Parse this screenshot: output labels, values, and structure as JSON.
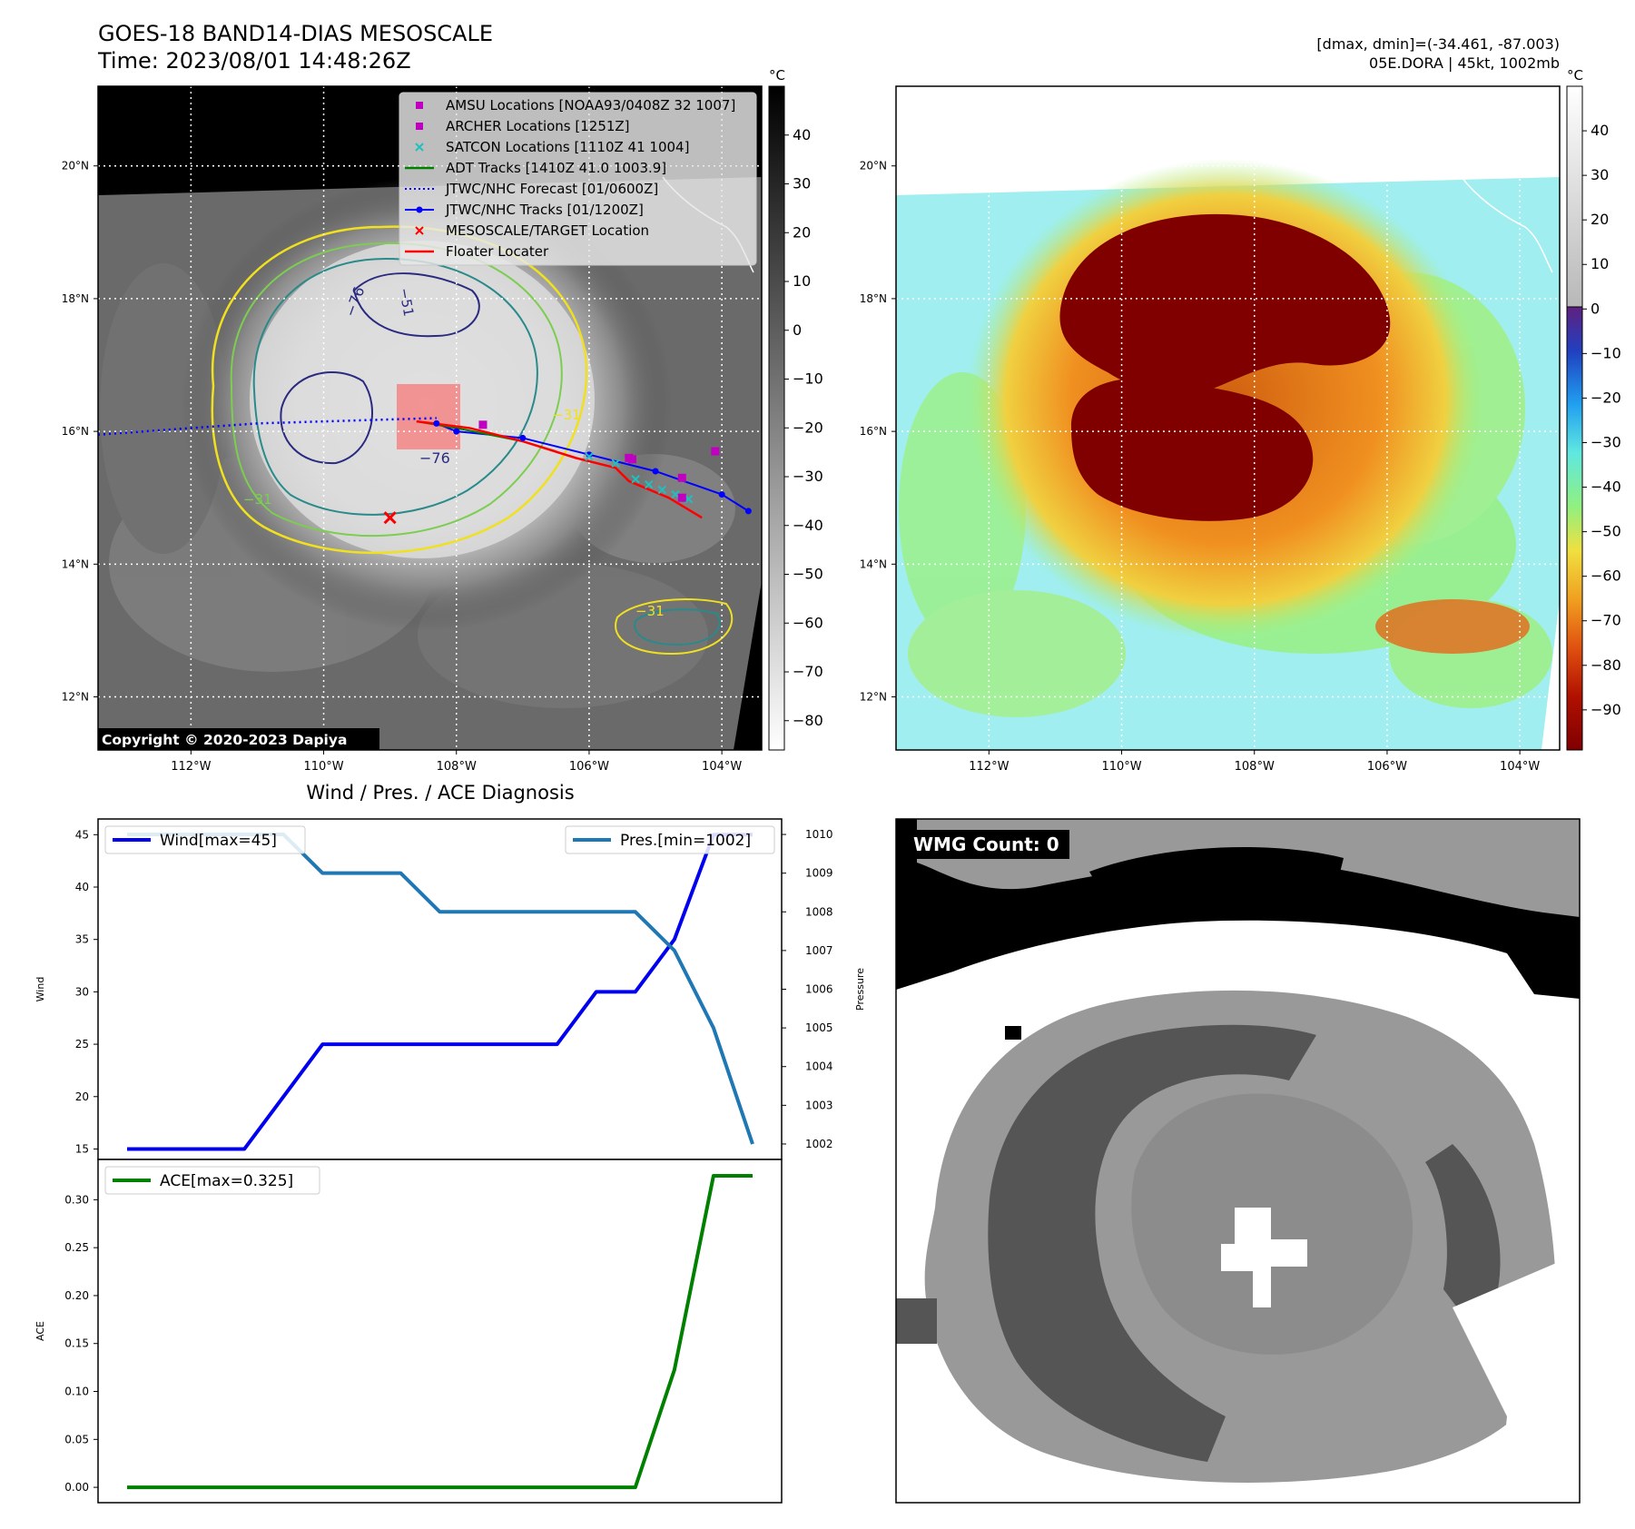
{
  "header": {
    "title_line1": "GOES-18 BAND14-DIAS MESOSCALE",
    "title_line2": "Time: 2023/08/01 14:48:26Z",
    "dmax_dmin": "[dmax, dmin]=(-34.461, -87.003)",
    "storm": "05E.DORA | 45kt, 1002mb"
  },
  "colors": {
    "amsu": "#c000c0",
    "archer": "#c000c0",
    "satcon": "#20c0c0",
    "adt": "#008000",
    "jtwc_forecast": "#0000ff",
    "jtwc_tracks": "#0000ff",
    "mesoscale": "#ff0000",
    "floater": "#ff0000",
    "wind": "#0000ee",
    "pressure": "#1f77b4",
    "ace": "#008000",
    "contour_yellow": "#f0e020",
    "contour_green": "#7ccd50",
    "contour_teal": "#2a8a8a",
    "contour_navy": "#2a2a80"
  },
  "map_panel": {
    "colorbar_unit": "°C",
    "colorbar_ticks": [
      "40",
      "30",
      "20",
      "10",
      "0",
      "−10",
      "−20",
      "−30",
      "−40",
      "−50",
      "−60",
      "−70",
      "−80"
    ],
    "colorbar_range": [
      -86,
      50
    ],
    "lat_labels": [
      "20°N",
      "18°N",
      "16°N",
      "14°N",
      "12°N"
    ],
    "lat_values": [
      20,
      18,
      16,
      14,
      12
    ],
    "lon_labels": [
      "112°W",
      "110°W",
      "108°W",
      "106°W",
      "104°W"
    ],
    "lon_values": [
      -112,
      -110,
      -108,
      -106,
      -104
    ],
    "lon_range": [
      -113.4,
      -103.4
    ],
    "lat_range": [
      11.2,
      21.2
    ],
    "contour_labels": [
      "−76",
      "−76",
      "−51",
      "−31",
      "−31",
      "−31"
    ],
    "copyright": "Copyright © 2020-2023 Dapiya",
    "legend": [
      {
        "key": "amsu",
        "marker": "square",
        "label": "AMSU Locations [NOAA93/0408Z 32 1007]"
      },
      {
        "key": "archer",
        "marker": "square",
        "label": "ARCHER Locations [1251Z]"
      },
      {
        "key": "satcon",
        "marker": "x",
        "label": "SATCON Locations [1110Z 41 1004]"
      },
      {
        "key": "adt",
        "marker": "line",
        "label": "ADT Tracks [1410Z 41.0 1003.9]"
      },
      {
        "key": "jtwc_forecast",
        "marker": "dotted",
        "label": "JTWC/NHC Forecast [01/0600Z]"
      },
      {
        "key": "jtwc_tracks",
        "marker": "line-dot",
        "label": "JTWC/NHC Tracks [01/1200Z]"
      },
      {
        "key": "mesoscale",
        "marker": "x",
        "label": "MESOSCALE/TARGET Location"
      },
      {
        "key": "floater",
        "marker": "line",
        "label": "Floater Locater"
      }
    ],
    "jtwc_forecast_track": [
      [
        -113.4,
        15.95
      ],
      [
        -112,
        16.05
      ],
      [
        -111,
        16.12
      ],
      [
        -110,
        16.15
      ],
      [
        -109,
        16.18
      ],
      [
        -108.3,
        16.2
      ]
    ],
    "jtwc_track": [
      [
        -108.3,
        16.12
      ],
      [
        -108,
        16.0
      ],
      [
        -107,
        15.9
      ],
      [
        -106,
        15.65
      ],
      [
        -105,
        15.4
      ],
      [
        -104,
        15.05
      ],
      [
        -103.6,
        14.8
      ]
    ],
    "adt_track": [
      [
        -108.6,
        16.15
      ],
      [
        -108,
        16.05
      ],
      [
        -107.5,
        15.95
      ],
      [
        -107,
        15.85
      ],
      [
        -106.5,
        15.7
      ]
    ],
    "floater_track": [
      [
        -108.6,
        16.15
      ],
      [
        -107.8,
        16.05
      ],
      [
        -107,
        15.85
      ],
      [
        -106.2,
        15.6
      ],
      [
        -105.6,
        15.45
      ],
      [
        -105.4,
        15.25
      ],
      [
        -104.8,
        15.0
      ],
      [
        -104.3,
        14.7
      ]
    ],
    "satcon_points": [
      [
        -106.0,
        15.62
      ],
      [
        -105.6,
        15.52
      ],
      [
        -105.3,
        15.28
      ],
      [
        -105.1,
        15.2
      ],
      [
        -104.9,
        15.12
      ],
      [
        -104.7,
        15.05
      ],
      [
        -104.5,
        14.98
      ]
    ],
    "amsu_points": [
      [
        -105.4,
        15.6
      ],
      [
        -104.6,
        15.3
      ],
      [
        -104.1,
        15.7
      ],
      [
        -107.6,
        16.1
      ],
      [
        -104.6,
        15.0
      ]
    ],
    "archer_points": [
      [
        -105.35,
        15.58
      ]
    ],
    "mesoscale_point": [
      -109,
      14.7
    ]
  },
  "ir_panel": {
    "colorbar_unit": "°C",
    "colorbar_ticks": [
      "40",
      "30",
      "20",
      "10",
      "0",
      "−10",
      "−20",
      "−30",
      "−40",
      "−50",
      "−60",
      "−70",
      "−80",
      "−90"
    ],
    "colorbar_range": [
      -99,
      50
    ],
    "lat_labels": [
      "20°N",
      "18°N",
      "16°N",
      "14°N",
      "12°N"
    ],
    "lon_labels": [
      "112°W",
      "110°W",
      "108°W",
      "106°W",
      "104°W"
    ]
  },
  "wmg_panel": {
    "label": "WMG Count: 0"
  },
  "chart_data": [
    {
      "type": "line",
      "title": "Wind / Pres. / ACE Diagnosis",
      "x": [
        0,
        1,
        2,
        3,
        4,
        5,
        6,
        7,
        8,
        9,
        10,
        11,
        12,
        13,
        14,
        15,
        16
      ],
      "series": [
        {
          "name": "Wind[max=45]",
          "axis": "left",
          "values": [
            15,
            15,
            15,
            15,
            20,
            25,
            25,
            25,
            25,
            25,
            25,
            25,
            30,
            30,
            35,
            45,
            45
          ]
        },
        {
          "name": "Pres.[min=1002]",
          "axis": "right",
          "values": [
            1010,
            1010,
            1010,
            1010,
            1010,
            1009,
            1009,
            1009,
            1008,
            1008,
            1008,
            1008,
            1008,
            1008,
            1007,
            1005,
            1002
          ]
        }
      ],
      "ylabel": "Wind",
      "ylabel_right": "Pressure",
      "ylim": [
        14,
        46.5
      ],
      "ylim_right": [
        1001.6,
        1010.4
      ],
      "yticks": [
        15,
        20,
        25,
        30,
        35,
        40,
        45
      ],
      "yticks_right": [
        1002,
        1003,
        1004,
        1005,
        1006,
        1007,
        1008,
        1009,
        1010
      ]
    },
    {
      "type": "line",
      "x": [
        0,
        1,
        2,
        3,
        4,
        5,
        6,
        7,
        8,
        9,
        10,
        11,
        12,
        13,
        14,
        15,
        16
      ],
      "series": [
        {
          "name": "ACE[max=0.325]",
          "values": [
            0,
            0,
            0,
            0,
            0,
            0,
            0,
            0,
            0,
            0,
            0,
            0,
            0,
            0.0,
            0.1225,
            0.325,
            0.325
          ]
        }
      ],
      "ylabel": "ACE",
      "ylim": [
        -0.016,
        0.342
      ],
      "yticks": [
        0.0,
        0.05,
        0.1,
        0.15,
        0.2,
        0.25,
        0.3
      ],
      "ytick_labels": [
        "0.00",
        "0.05",
        "0.10",
        "0.15",
        "0.20",
        "0.25",
        "0.30"
      ]
    }
  ]
}
